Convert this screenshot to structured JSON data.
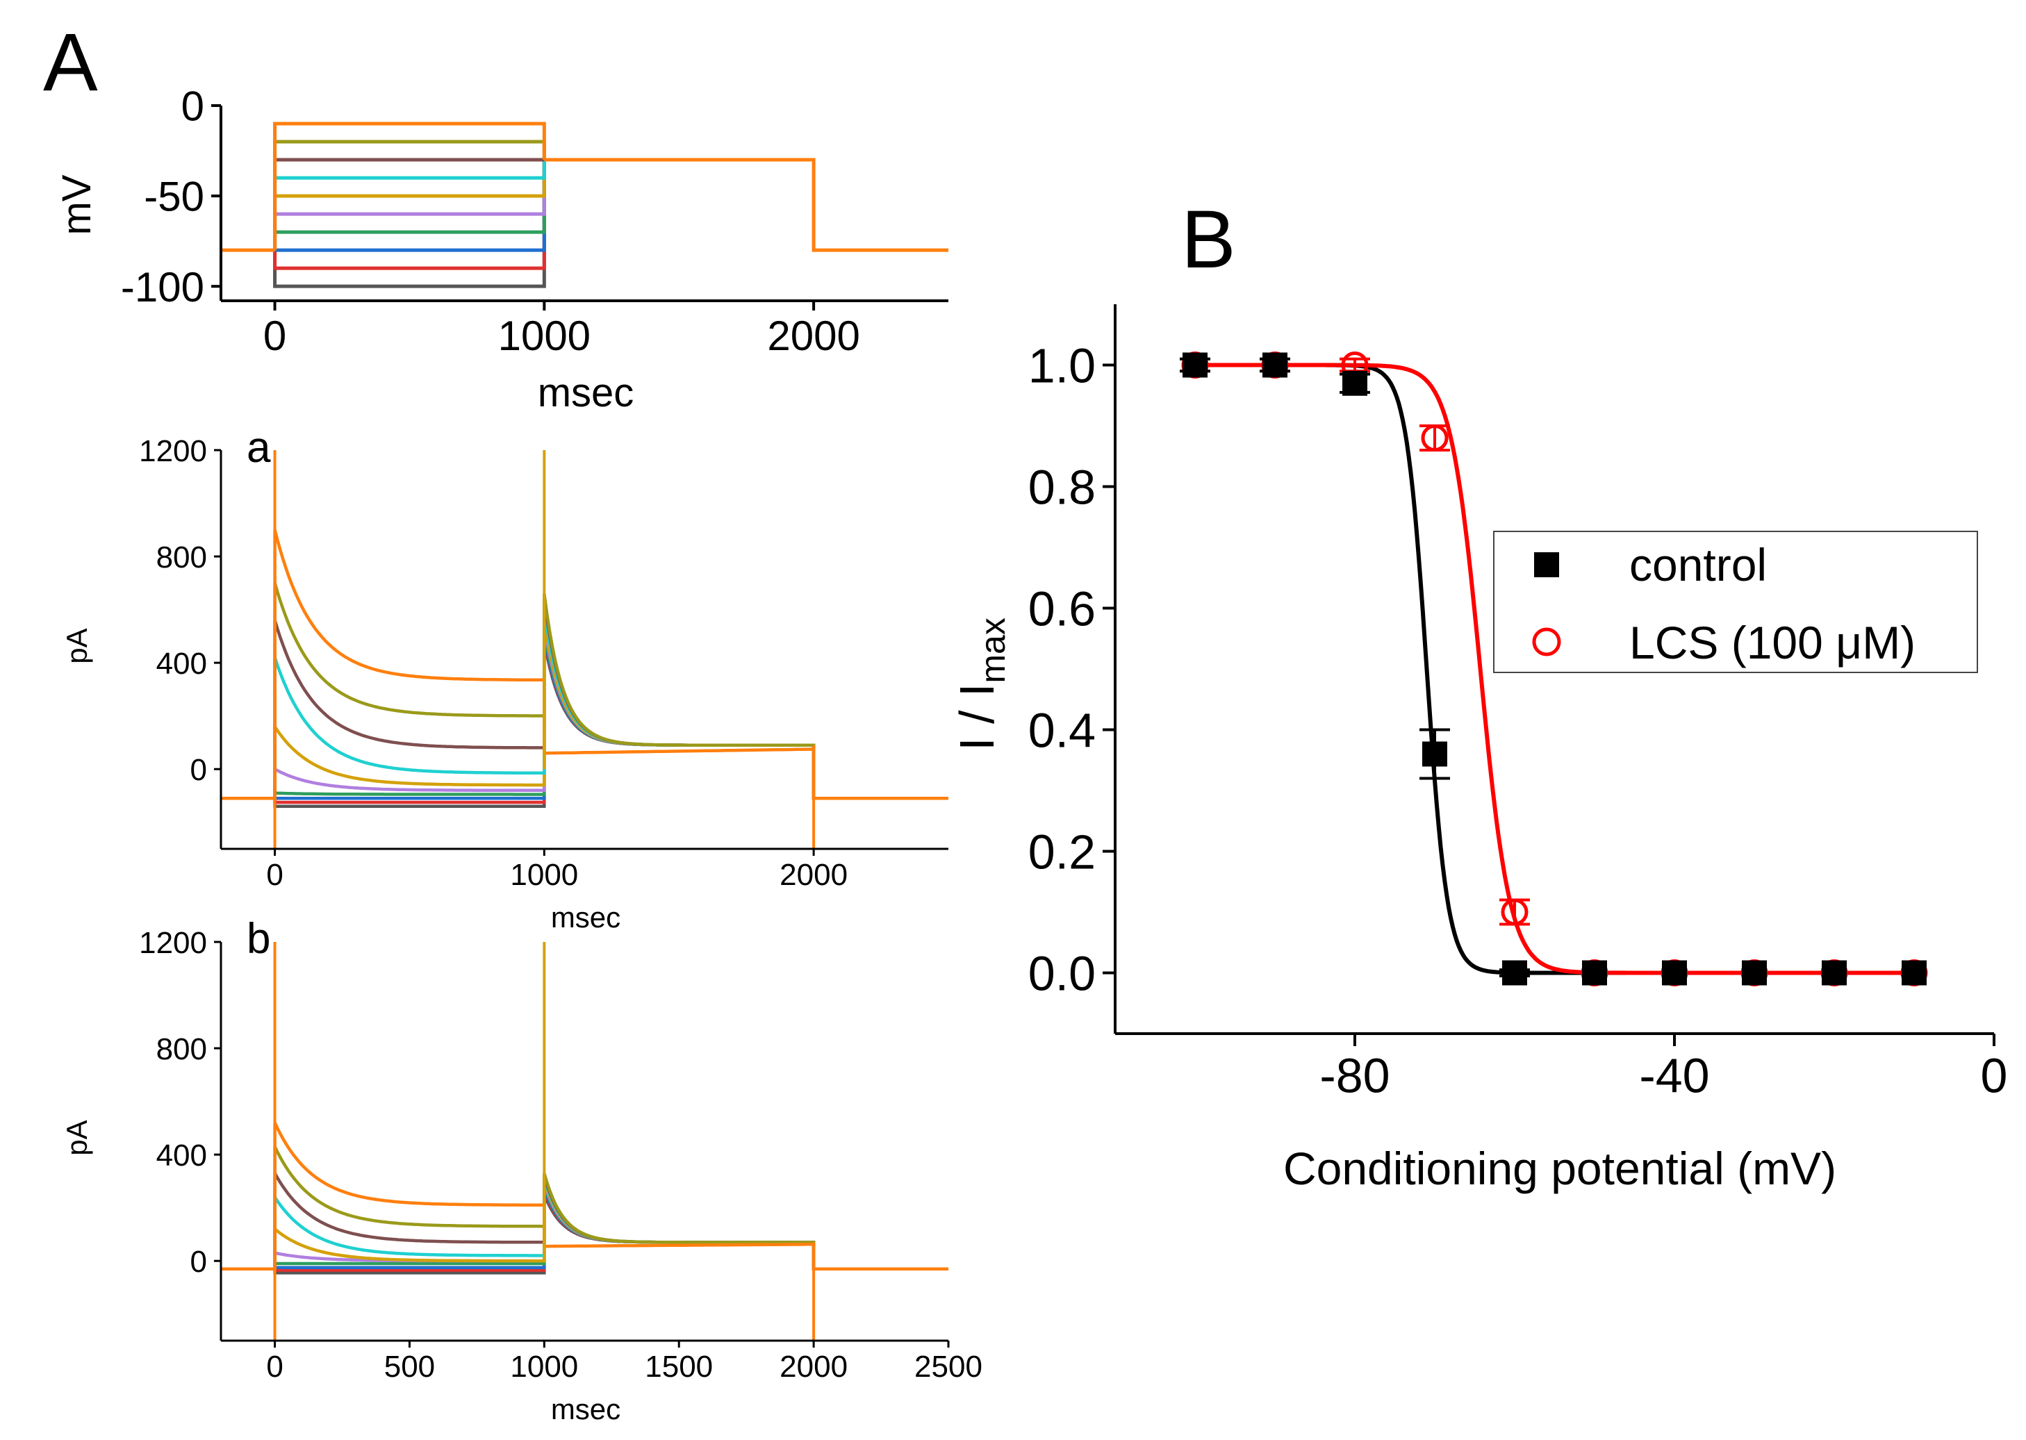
{
  "figure": {
    "panel_A_label": "A",
    "panel_B_label": "B",
    "sub_a_label": "a",
    "sub_b_label": "b"
  },
  "colors": {
    "orange": "#ff7f0e",
    "olive": "#9a9a1a",
    "brown": "#7f4f4f",
    "cyan": "#1fd0d0",
    "gold": "#d4a10a",
    "purple": "#b07fe0",
    "green": "#2e9e5e",
    "blue": "#1f6fd0",
    "red": "#e03030",
    "gray": "#555555",
    "black": "#000000",
    "lcs_red": "#ff0000"
  },
  "chart_data": [
    {
      "id": "protocol",
      "type": "line",
      "xlabel": "msec",
      "ylabel": "mV",
      "xlim": [
        -200,
        2500
      ],
      "ylim": [
        -108,
        0
      ],
      "xticks": [
        0,
        1000,
        2000
      ],
      "yticks": [
        0,
        -50,
        -100
      ],
      "holding_mV": -80,
      "test_mV": -30,
      "conditioning_mV": [
        -100,
        -90,
        -80,
        -70,
        -60,
        -50,
        -40,
        -30,
        -20,
        -10
      ],
      "conditioning_colors": [
        "gray",
        "red",
        "blue",
        "green",
        "purple",
        "gold",
        "cyan",
        "brown",
        "olive",
        "orange"
      ],
      "pulse_ms": [
        0,
        1000
      ],
      "test_ms": [
        1000,
        2000
      ]
    },
    {
      "id": "traces_a",
      "type": "line",
      "label": "a",
      "xlabel": "msec",
      "ylabel": "pA",
      "xlim": [
        -200,
        2500
      ],
      "ylim": [
        -300,
        1200
      ],
      "xticks": [
        0,
        1000,
        2000
      ],
      "yticks": [
        0,
        400,
        800,
        1200
      ],
      "baseline_pA": -110,
      "test_end_pA": 90,
      "traces": [
        {
          "color": "orange",
          "peak": 900,
          "steady": 335,
          "test_peak": 0,
          "test_plateau": 60
        },
        {
          "color": "olive",
          "peak": 700,
          "steady": 200,
          "test_peak": 660,
          "test_plateau": 110
        },
        {
          "color": "brown",
          "peak": 560,
          "steady": 80,
          "test_peak": 640,
          "test_plateau": 100
        },
        {
          "color": "cyan",
          "peak": 420,
          "steady": -15,
          "test_peak": 600,
          "test_plateau": 95
        },
        {
          "color": "gold",
          "peak": 160,
          "steady": -60,
          "test_peak": 560,
          "test_plateau": 90
        },
        {
          "color": "purple",
          "peak": 0,
          "steady": -80,
          "test_peak": 540,
          "test_plateau": 88
        },
        {
          "color": "green",
          "peak": -90,
          "steady": -95,
          "test_peak": 520,
          "test_plateau": 86
        },
        {
          "color": "blue",
          "peak": -110,
          "steady": -110,
          "test_peak": 500,
          "test_plateau": 85
        },
        {
          "color": "red",
          "peak": -125,
          "steady": -125,
          "test_peak": 490,
          "test_plateau": 85
        },
        {
          "color": "gray",
          "peak": -140,
          "steady": -140,
          "test_peak": 480,
          "test_plateau": 85
        }
      ]
    },
    {
      "id": "traces_b",
      "type": "line",
      "label": "b",
      "xlabel": "msec",
      "ylabel": "pA",
      "xlim": [
        -200,
        2500
      ],
      "ylim": [
        -300,
        1200
      ],
      "xticks": [
        0,
        500,
        1000,
        1500,
        2000,
        2500
      ],
      "yticks": [
        0,
        400,
        800,
        1200
      ],
      "baseline_pA": -30,
      "test_end_pA": 70,
      "traces": [
        {
          "color": "orange",
          "peak": 520,
          "steady": 210,
          "test_peak": 0,
          "test_plateau": 55
        },
        {
          "color": "olive",
          "peak": 430,
          "steady": 130,
          "test_peak": 330,
          "test_plateau": 80
        },
        {
          "color": "brown",
          "peak": 330,
          "steady": 70,
          "test_peak": 320,
          "test_plateau": 78
        },
        {
          "color": "cyan",
          "peak": 240,
          "steady": 20,
          "test_peak": 310,
          "test_plateau": 76
        },
        {
          "color": "gold",
          "peak": 120,
          "steady": 0,
          "test_peak": 300,
          "test_plateau": 74
        },
        {
          "color": "purple",
          "peak": 30,
          "steady": 0,
          "test_peak": 290,
          "test_plateau": 72
        },
        {
          "color": "green",
          "peak": -10,
          "steady": -10,
          "test_peak": 280,
          "test_plateau": 70
        },
        {
          "color": "blue",
          "peak": -25,
          "steady": -25,
          "test_peak": 270,
          "test_plateau": 70
        },
        {
          "color": "red",
          "peak": -35,
          "steady": -35,
          "test_peak": 260,
          "test_plateau": 70
        },
        {
          "color": "gray",
          "peak": -45,
          "steady": -45,
          "test_peak": 250,
          "test_plateau": 70
        }
      ]
    },
    {
      "id": "inactivation",
      "type": "scatter",
      "xlabel": "Conditioning potential (mV)",
      "ylabel_main": "I / I",
      "ylabel_sub": "max",
      "xlim": [
        -110,
        0
      ],
      "ylim": [
        -0.1,
        1.1
      ],
      "xticks": [
        -80,
        -40,
        0
      ],
      "yticks": [
        0.0,
        0.2,
        0.4,
        0.6,
        0.8,
        1.0
      ],
      "ytick_labels": [
        "0.0",
        "0.2",
        "0.4",
        "0.6",
        "0.8",
        "1.0"
      ],
      "legend_position": "center-right",
      "series": [
        {
          "name": "control",
          "marker": "filled-square",
          "color": "black",
          "x": [
            -100,
            -90,
            -80,
            -70,
            -60,
            -50,
            -40,
            -30,
            -20,
            -10
          ],
          "y": [
            1.0,
            1.0,
            0.97,
            0.36,
            0.0,
            0.0,
            0.0,
            0.0,
            0.0,
            0.0
          ],
          "err": [
            0.01,
            0.01,
            0.015,
            0.04,
            0.005,
            0.0,
            0.0,
            0.0,
            0.0,
            0.0
          ],
          "fit": {
            "v_half": -71,
            "k": 1.3
          }
        },
        {
          "name": "LCS (100 μM)",
          "marker": "open-circle",
          "color": "lcs_red",
          "x": [
            -100,
            -90,
            -80,
            -70,
            -60,
            -50,
            -40,
            -30,
            -20,
            -10
          ],
          "y": [
            1.0,
            1.0,
            1.0,
            0.88,
            0.1,
            0.0,
            0.0,
            0.0,
            0.0,
            0.0
          ],
          "err": [
            0.01,
            0.01,
            0.01,
            0.02,
            0.02,
            0.0,
            0.0,
            0.0,
            0.0,
            0.0
          ],
          "fit": {
            "v_half": -64.3,
            "k": 1.85
          }
        }
      ]
    }
  ]
}
